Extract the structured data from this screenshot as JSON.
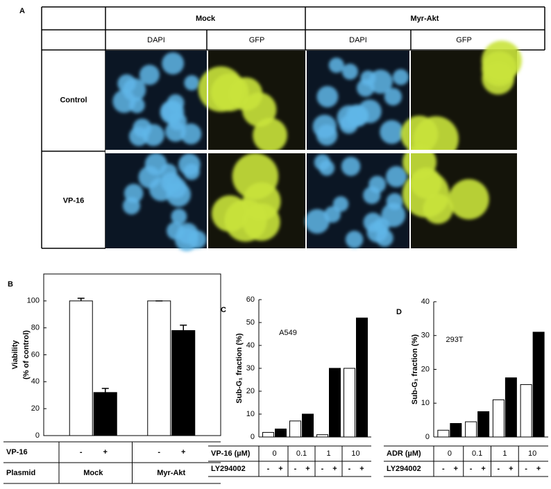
{
  "panel_a": {
    "label": "A",
    "columns": [
      "Mock",
      "Myr-Akt"
    ],
    "subcolumns": [
      "DAPI",
      "GFP",
      "DAPI",
      "GFP"
    ],
    "rows": [
      "Control",
      "VP-16"
    ]
  },
  "chart_data": [
    {
      "type": "bar",
      "panel": "B",
      "ylabel": "Viability",
      "ylabel_sub": "(% of control)",
      "categories": [
        "Mock",
        "Myr-Akt"
      ],
      "category_label": "Plasmid",
      "sign_label": "VP-16",
      "signs": [
        "-",
        "+",
        "-",
        "+"
      ],
      "series": [
        {
          "color": "#ffffff",
          "values": [
            100,
            100
          ],
          "errors": [
            2,
            0
          ]
        },
        {
          "color": "#000000",
          "values": [
            32,
            78
          ],
          "errors": [
            3,
            4
          ]
        }
      ],
      "ylim": [
        0,
        120
      ],
      "yticks": [
        0,
        20,
        40,
        60,
        80,
        100
      ]
    },
    {
      "type": "bar",
      "panel": "C",
      "ylabel": "Sub-G₁ fraction (%)",
      "annotation": "A549",
      "categories": [
        "0",
        "0.1",
        "1",
        "10"
      ],
      "category_label": "VP-16 (µM)",
      "sign_label": "LY294002",
      "signs": [
        "-",
        "+",
        "-",
        "+",
        "-",
        "+",
        "-",
        "+"
      ],
      "series": [
        {
          "color": "#ffffff",
          "values": [
            2,
            7,
            1,
            30
          ]
        },
        {
          "color": "#000000",
          "values": [
            3.5,
            10,
            30,
            52
          ]
        }
      ],
      "ylim": [
        0,
        60
      ],
      "yticks": [
        0,
        10,
        20,
        30,
        40,
        50,
        60
      ]
    },
    {
      "type": "bar",
      "panel": "D",
      "ylabel": "Sub-G₁ fraction (%)",
      "annotation": "293T",
      "categories": [
        "0",
        "0.1",
        "1",
        "10"
      ],
      "category_label": "ADR (µM)",
      "sign_label": "LY294002",
      "signs": [
        "-",
        "+",
        "-",
        "+",
        "-",
        "+",
        "-",
        "+"
      ],
      "series": [
        {
          "color": "#ffffff",
          "values": [
            2,
            4.5,
            11,
            15.5
          ]
        },
        {
          "color": "#000000",
          "values": [
            4,
            7.5,
            17.5,
            31
          ]
        }
      ],
      "ylim": [
        0,
        40
      ],
      "yticks": [
        0,
        10,
        20,
        30,
        40
      ]
    }
  ]
}
